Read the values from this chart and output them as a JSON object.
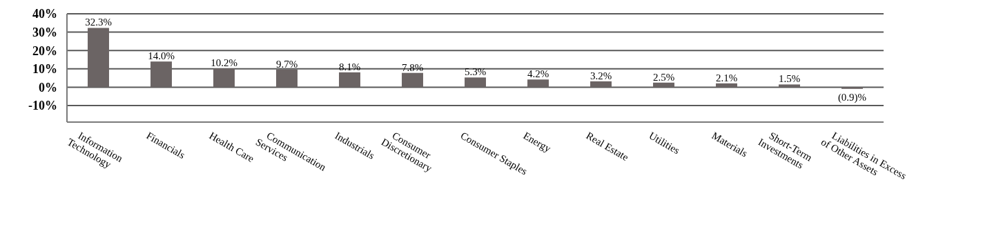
{
  "chart_data": {
    "type": "bar",
    "categories": [
      "Information\nTechnology",
      "Financials",
      "Health Care",
      "Communication\nServices",
      "Industrials",
      "Consumer\nDiscretionary",
      "Consumer Staples",
      "Energy",
      "Real Estate",
      "Utilities",
      "Materials",
      "Short-Term\nInvestments",
      "Liabilities in Excess\nof Other Assets"
    ],
    "values": [
      32.3,
      14.0,
      10.2,
      9.7,
      8.1,
      7.8,
      5.3,
      4.2,
      3.2,
      2.5,
      2.1,
      1.5,
      -0.9
    ],
    "value_labels": [
      "32.3%",
      "14.0%",
      "10.2%",
      "9.7%",
      "8.1%",
      "7.8%",
      "5.3%",
      "4.2%",
      "3.2%",
      "2.5%",
      "2.1%",
      "1.5%",
      "(0.9)%"
    ],
    "color": "#6b6464",
    "ylim": [
      -19,
      40
    ],
    "yticks": [
      {
        "value": -10,
        "label": "-10%"
      },
      {
        "value": 0,
        "label": "0%"
      },
      {
        "value": 10,
        "label": "10%"
      },
      {
        "value": 20,
        "label": "20%"
      },
      {
        "value": 30,
        "label": "30%"
      },
      {
        "value": 40,
        "label": "40%"
      }
    ],
    "grid": "y"
  }
}
